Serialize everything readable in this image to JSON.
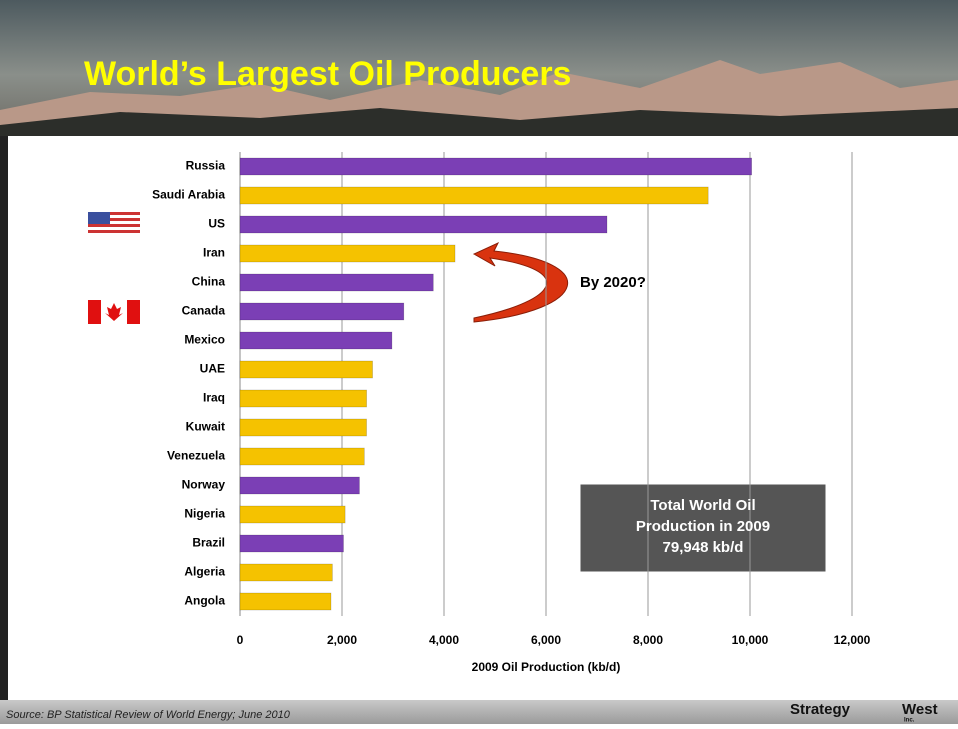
{
  "chart_data": {
    "type": "hbar",
    "title": "World’s Largest Oil Producers",
    "categories": [
      "Russia",
      "Saudi Arabia",
      "US",
      "Iran",
      "China",
      "Canada",
      "Mexico",
      "UAE",
      "Iraq",
      "Kuwait",
      "Venezuela",
      "Norway",
      "Nigeria",
      "Brazil",
      "Algeria",
      "Angola"
    ],
    "values": [
      10032,
      9180,
      7196,
      4216,
      3790,
      3212,
      2979,
      2599,
      2482,
      2481,
      2437,
      2342,
      2061,
      2029,
      1811,
      1784
    ],
    "colors": [
      "#7b3fb5",
      "#f5c200",
      "#7b3fb5",
      "#f5c200",
      "#7b3fb5",
      "#7b3fb5",
      "#7b3fb5",
      "#f5c200",
      "#f5c200",
      "#f5c200",
      "#f5c200",
      "#7b3fb5",
      "#f5c200",
      "#7b3fb5",
      "#f5c200",
      "#f5c200"
    ],
    "xlabel": "2009 Oil Production (kb/d)",
    "xlim": [
      0,
      12000
    ],
    "xticks": [
      0,
      {
        "value": 2000,
        "label": "2,000"
      },
      {
        "value": 4000,
        "label": "4,000"
      },
      {
        "value": 6000,
        "label": "6,000"
      },
      {
        "value": 8000,
        "label": "8,000"
      },
      {
        "value": 10000,
        "label": "10,000"
      },
      {
        "value": 12000,
        "label": "12,000"
      }
    ],
    "grid": true,
    "annotations": {
      "arrow_text": "By 2020?",
      "box": [
        "Total World Oil",
        "Production in 2009",
        "79,948 kb/d"
      ]
    }
  },
  "footer": {
    "source": "Source: BP Statistical Review of World Energy; June 2010",
    "logo": "Strategy",
    "logo_2": "West",
    "logo_3": "Inc."
  }
}
